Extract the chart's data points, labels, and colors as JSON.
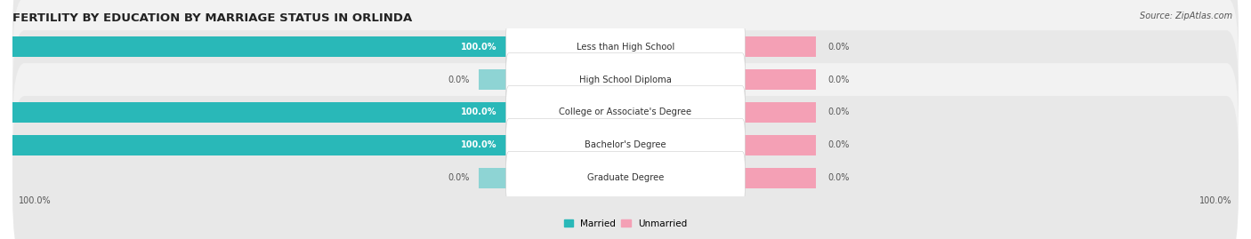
{
  "title": "FERTILITY BY EDUCATION BY MARRIAGE STATUS IN ORLINDA",
  "source": "Source: ZipAtlas.com",
  "categories": [
    "Less than High School",
    "High School Diploma",
    "College or Associate's Degree",
    "Bachelor's Degree",
    "Graduate Degree"
  ],
  "married_values": [
    100.0,
    0.0,
    100.0,
    100.0,
    0.0
  ],
  "unmarried_values": [
    0.0,
    0.0,
    0.0,
    0.0,
    0.0
  ],
  "married_color": "#29B8B8",
  "married_light_color": "#8ED4D4",
  "unmarried_color": "#F4A0B5",
  "row_bg_colors": [
    "#E8E8E8",
    "#F2F2F2"
  ],
  "title_fontsize": 9.5,
  "label_fontsize": 7.2,
  "value_fontsize": 7.0,
  "legend_fontsize": 7.5,
  "source_fontsize": 7,
  "axis_label_fontsize": 7,
  "background_color": "#FFFFFF",
  "married_value_color_inside": "#FFFFFF",
  "value_color_outside": "#555555"
}
